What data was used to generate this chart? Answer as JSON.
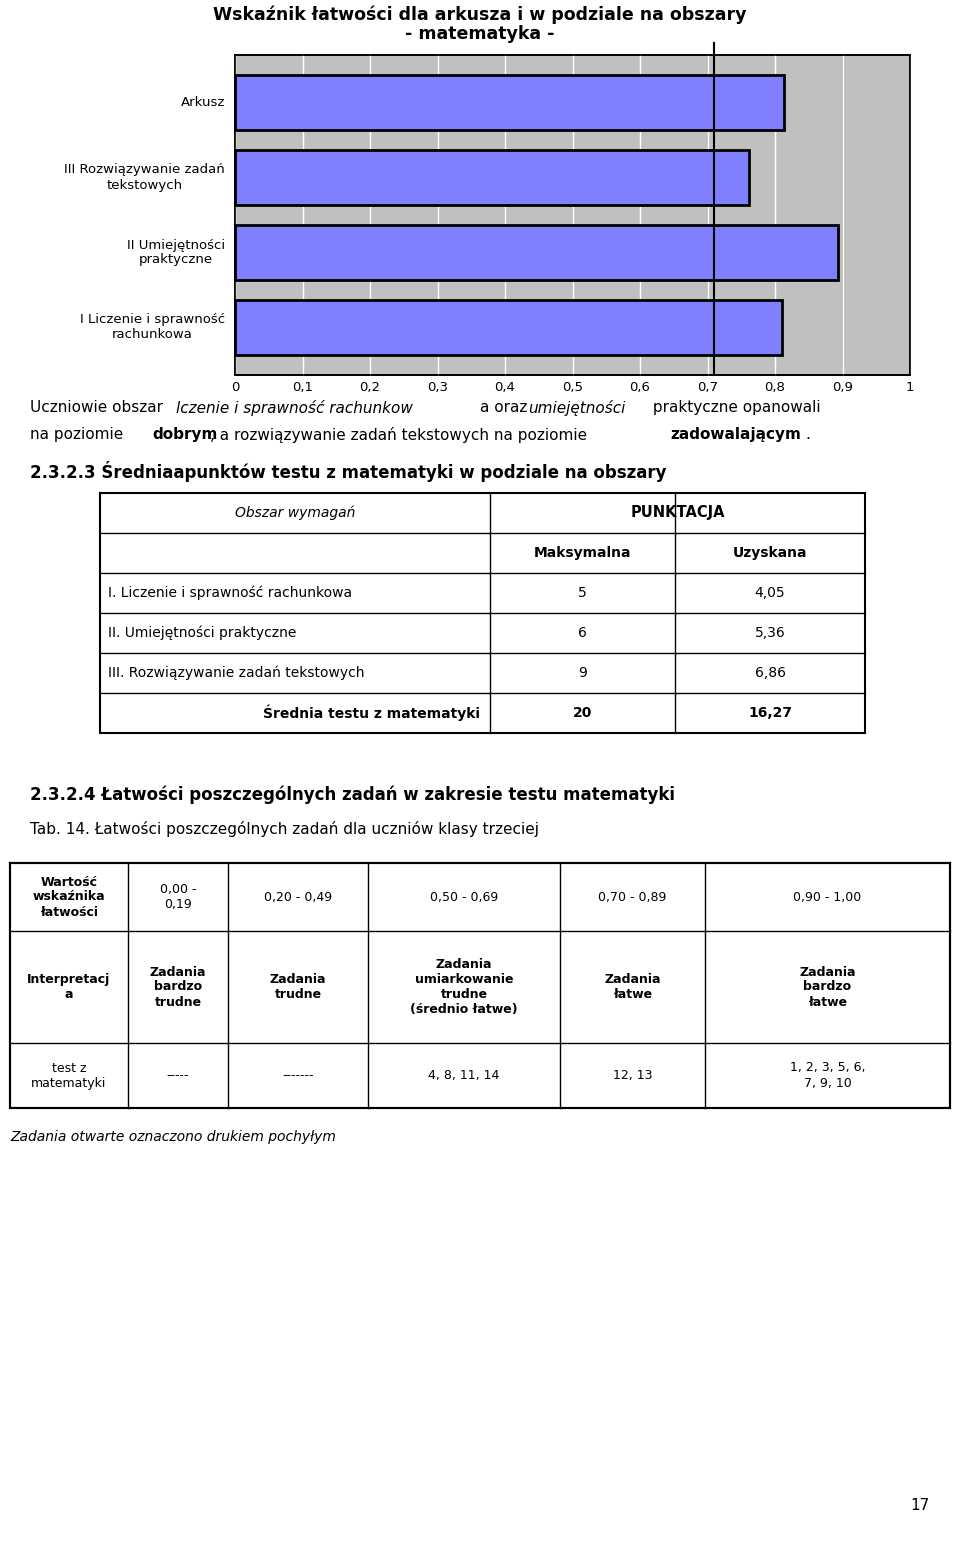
{
  "title_line1": "Wskaźnik łatwości dla arkusza i w podziale na obszary",
  "title_line2": "- matematyka -",
  "bar_labels": [
    "I Liczenie i sprawność\nrachunkowa",
    "II Umiejętności\npraktyczne",
    "III Rozwiązywanie zadań\ntekstowych",
    "Arkusz"
  ],
  "bar_values": [
    0.81,
    0.893,
    0.762,
    0.814
  ],
  "bar_color": "#8080ff",
  "bar_edgecolor": "#000000",
  "plot_bg_color": "#c0c0c0",
  "reference_line": 0.71,
  "xtick_labels": [
    "0",
    "0,1",
    "0,2",
    "0,3",
    "0,4",
    "0,5",
    "0,6",
    "0,7",
    "0,8",
    "0,9",
    "1"
  ],
  "section_title": "2.3.2.3 Średniaapunktów testu z matematyki w podziale na obszary",
  "table1_rows": [
    [
      "I. Liczenie i sprawność rachunkowa",
      "5",
      "4,05"
    ],
    [
      "II. Umiejętności praktyczne",
      "6",
      "5,36"
    ],
    [
      "III. Rozwiązywanie zadań tekstowych",
      "9",
      "6,86"
    ],
    [
      "Średnia testu z matematyki",
      "20",
      "16,27"
    ]
  ],
  "section_title2": "2.3.2.4 Łatwości poszczególnych zadań w zakresie testu matematyki",
  "tab_caption": "Tab. 14. Łatwości poszczególnych zadań dla uczniów klasy trzeciej",
  "table2_col_headers": [
    "Wartość\nwskaźnika\nłatwości",
    "0,00 -\n0,19",
    "0,20 - 0,49",
    "0,50 - 0,69",
    "0,70 - 0,89",
    "0,90 - 1,00"
  ],
  "table2_row2": [
    "Interpretacj\na",
    "Zadania\nbardzo\ntrudne",
    "Zadania\ntrudne",
    "Zadania\numiarkowanie\ntrudne\n(średnio łatwe)",
    "Zadania\nłatwe",
    "Zadania\nbardzo\nłatwe"
  ],
  "table2_row3": [
    "test z\nmatematyki",
    "-----",
    "-------",
    "4, 8, 11, 14",
    "12, 13",
    "1, 2, 3, 5, 6,\n7, 9, 10"
  ],
  "footnote": "Zadania otwarte oznaczono drukiem pochyłym",
  "page_number": "17",
  "fig_bg": "#ffffff"
}
